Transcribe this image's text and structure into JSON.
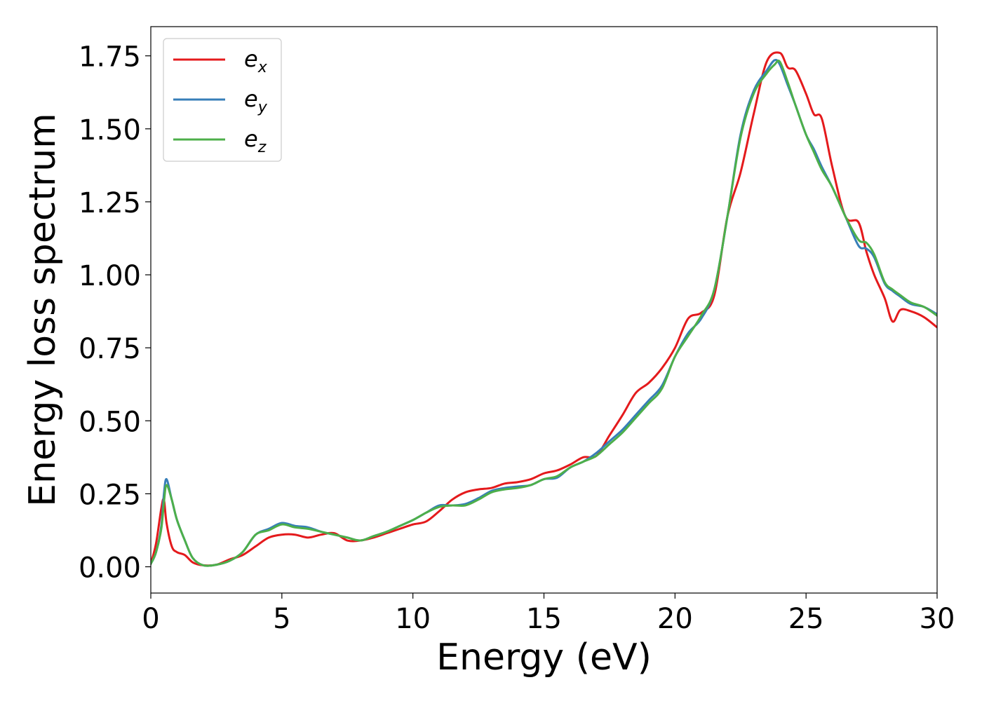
{
  "chart_data": {
    "type": "line",
    "xlabel": "Energy (eV)",
    "ylabel": "Energy loss spectrum",
    "xlim": [
      0,
      30
    ],
    "ylim": [
      -0.09,
      1.85
    ],
    "xticks": [
      0,
      5,
      10,
      15,
      20,
      25,
      30
    ],
    "xtick_labels": [
      "0",
      "5",
      "10",
      "15",
      "20",
      "25",
      "30"
    ],
    "yticks": [
      0.0,
      0.25,
      0.5,
      0.75,
      1.0,
      1.25,
      1.5,
      1.75
    ],
    "ytick_labels": [
      "0.00",
      "0.25",
      "0.50",
      "0.75",
      "1.00",
      "1.25",
      "1.50",
      "1.75"
    ],
    "grid": false,
    "legend_position": "top-left",
    "series": [
      {
        "name": "e",
        "subscript": "x",
        "color": "#e41a1c",
        "x": [
          0,
          0.2,
          0.4,
          0.5,
          0.6,
          0.8,
          1.0,
          1.3,
          1.6,
          2.0,
          2.5,
          3.0,
          3.5,
          4.0,
          4.5,
          5.0,
          5.5,
          6.0,
          6.5,
          7.0,
          7.5,
          8.0,
          8.5,
          9.0,
          9.5,
          10.0,
          10.5,
          11.0,
          11.5,
          12.0,
          12.5,
          13.0,
          13.5,
          14.0,
          14.5,
          15.0,
          15.5,
          16.0,
          16.5,
          17.0,
          17.5,
          18.0,
          18.5,
          19.0,
          19.5,
          20.0,
          20.5,
          21.0,
          21.5,
          22.0,
          22.5,
          23.0,
          23.5,
          24.0,
          24.3,
          24.6,
          25.0,
          25.3,
          25.6,
          26.0,
          26.5,
          27.0,
          27.3,
          27.6,
          28.0,
          28.3,
          28.6,
          29.0,
          29.5,
          30.0
        ],
        "values": [
          0.01,
          0.08,
          0.2,
          0.23,
          0.15,
          0.07,
          0.05,
          0.04,
          0.015,
          0.005,
          0.007,
          0.025,
          0.04,
          0.07,
          0.1,
          0.11,
          0.11,
          0.1,
          0.11,
          0.115,
          0.09,
          0.09,
          0.1,
          0.115,
          0.13,
          0.145,
          0.155,
          0.19,
          0.23,
          0.255,
          0.265,
          0.27,
          0.285,
          0.29,
          0.3,
          0.32,
          0.33,
          0.35,
          0.375,
          0.38,
          0.45,
          0.52,
          0.595,
          0.63,
          0.68,
          0.75,
          0.85,
          0.87,
          0.93,
          1.2,
          1.35,
          1.55,
          1.73,
          1.76,
          1.71,
          1.7,
          1.62,
          1.55,
          1.535,
          1.37,
          1.2,
          1.18,
          1.08,
          1.0,
          0.92,
          0.84,
          0.88,
          0.875,
          0.855,
          0.82
        ]
      },
      {
        "name": "e",
        "subscript": "y",
        "color": "#377eb8",
        "x": [
          0,
          0.2,
          0.4,
          0.5,
          0.6,
          0.8,
          1.0,
          1.3,
          1.6,
          2.0,
          2.5,
          3.0,
          3.5,
          4.0,
          4.5,
          5.0,
          5.5,
          6.0,
          6.5,
          7.0,
          7.5,
          8.0,
          8.5,
          9.0,
          9.5,
          10.0,
          10.5,
          11.0,
          11.5,
          12.0,
          12.5,
          13.0,
          13.5,
          14.0,
          14.5,
          15.0,
          15.5,
          16.0,
          16.5,
          17.0,
          17.5,
          18.0,
          18.5,
          19.0,
          19.5,
          20.0,
          20.5,
          21.0,
          21.5,
          22.0,
          22.5,
          23.0,
          23.5,
          23.8,
          24.0,
          24.3,
          24.6,
          25.0,
          25.3,
          25.6,
          26.0,
          26.5,
          27.0,
          27.3,
          27.6,
          28.0,
          28.3,
          28.6,
          29.0,
          29.5,
          30.0
        ],
        "values": [
          0.01,
          0.05,
          0.14,
          0.25,
          0.3,
          0.23,
          0.16,
          0.09,
          0.03,
          0.005,
          0.007,
          0.02,
          0.05,
          0.11,
          0.13,
          0.15,
          0.14,
          0.135,
          0.12,
          0.11,
          0.1,
          0.09,
          0.105,
          0.12,
          0.14,
          0.16,
          0.185,
          0.21,
          0.21,
          0.215,
          0.235,
          0.26,
          0.27,
          0.275,
          0.28,
          0.3,
          0.305,
          0.34,
          0.36,
          0.39,
          0.43,
          0.47,
          0.52,
          0.57,
          0.62,
          0.72,
          0.8,
          0.85,
          0.95,
          1.2,
          1.48,
          1.63,
          1.7,
          1.735,
          1.72,
          1.65,
          1.58,
          1.48,
          1.43,
          1.37,
          1.3,
          1.2,
          1.1,
          1.09,
          1.06,
          0.97,
          0.945,
          0.925,
          0.9,
          0.89,
          0.865
        ]
      },
      {
        "name": "e",
        "subscript": "z",
        "color": "#4daf4a",
        "x": [
          0,
          0.2,
          0.4,
          0.5,
          0.6,
          0.8,
          1.0,
          1.3,
          1.6,
          2.0,
          2.5,
          3.0,
          3.5,
          4.0,
          4.5,
          5.0,
          5.5,
          6.0,
          6.5,
          7.0,
          7.5,
          8.0,
          8.5,
          9.0,
          9.5,
          10.0,
          10.5,
          11.0,
          11.5,
          12.0,
          12.5,
          13.0,
          13.5,
          14.0,
          14.5,
          15.0,
          15.5,
          16.0,
          16.5,
          17.0,
          17.5,
          18.0,
          18.5,
          19.0,
          19.5,
          20.0,
          20.5,
          21.0,
          21.5,
          22.0,
          22.5,
          23.0,
          23.5,
          23.8,
          24.0,
          24.3,
          24.6,
          25.0,
          25.3,
          25.6,
          26.0,
          26.5,
          27.0,
          27.3,
          27.6,
          28.0,
          28.3,
          28.6,
          29.0,
          29.5,
          30.0
        ],
        "values": [
          0.01,
          0.05,
          0.13,
          0.22,
          0.28,
          0.23,
          0.16,
          0.09,
          0.03,
          0.005,
          0.007,
          0.02,
          0.05,
          0.11,
          0.125,
          0.145,
          0.135,
          0.13,
          0.12,
          0.11,
          0.1,
          0.09,
          0.105,
          0.12,
          0.14,
          0.16,
          0.185,
          0.205,
          0.21,
          0.21,
          0.23,
          0.255,
          0.265,
          0.27,
          0.28,
          0.3,
          0.31,
          0.34,
          0.36,
          0.38,
          0.42,
          0.46,
          0.51,
          0.56,
          0.61,
          0.72,
          0.79,
          0.86,
          0.95,
          1.2,
          1.47,
          1.62,
          1.69,
          1.72,
          1.73,
          1.66,
          1.58,
          1.48,
          1.42,
          1.36,
          1.3,
          1.2,
          1.12,
          1.11,
          1.07,
          0.975,
          0.95,
          0.93,
          0.905,
          0.89,
          0.86
        ]
      }
    ]
  }
}
